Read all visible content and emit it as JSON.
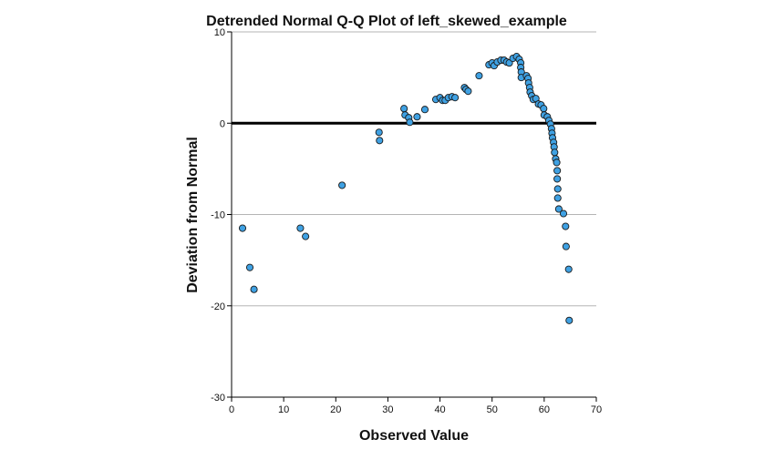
{
  "chart_data": {
    "type": "scatter",
    "title": "Detrended Normal Q-Q Plot of left_skewed_example",
    "xlabel": "Observed Value",
    "ylabel": "Deviation from Normal",
    "xlim": [
      0,
      70
    ],
    "ylim": [
      -30,
      10
    ],
    "xticks": [
      0,
      10,
      20,
      30,
      40,
      50,
      60,
      70
    ],
    "yticks": [
      -30,
      -20,
      -10,
      0,
      10
    ],
    "gridlines": "horizontal",
    "reference_line_y": 0,
    "colors": {
      "point_fill": "#3fa1e3",
      "point_stroke": "#1a1a1a",
      "gridline": "#b5b5b5",
      "reference_line": "#000000",
      "axis": "#000000"
    },
    "points": [
      [
        2.1,
        -11.5
      ],
      [
        3.5,
        -15.8
      ],
      [
        4.3,
        -18.2
      ],
      [
        13.2,
        -11.5
      ],
      [
        14.2,
        -12.4
      ],
      [
        21.2,
        -6.8
      ],
      [
        28.3,
        -1.0
      ],
      [
        28.4,
        -1.9
      ],
      [
        33.1,
        1.6
      ],
      [
        33.3,
        0.9
      ],
      [
        34.0,
        0.6
      ],
      [
        34.2,
        0.1
      ],
      [
        35.6,
        0.7
      ],
      [
        37.1,
        1.5
      ],
      [
        39.2,
        2.6
      ],
      [
        40.0,
        2.8
      ],
      [
        40.5,
        2.5
      ],
      [
        41.0,
        2.5
      ],
      [
        41.6,
        2.8
      ],
      [
        42.3,
        2.9
      ],
      [
        42.9,
        2.8
      ],
      [
        44.7,
        3.9
      ],
      [
        45.0,
        3.7
      ],
      [
        45.4,
        3.5
      ],
      [
        47.5,
        5.2
      ],
      [
        49.4,
        6.4
      ],
      [
        50.0,
        6.6
      ],
      [
        50.4,
        6.3
      ],
      [
        51.0,
        6.7
      ],
      [
        51.7,
        6.9
      ],
      [
        52.3,
        6.9
      ],
      [
        52.8,
        6.7
      ],
      [
        53.3,
        6.6
      ],
      [
        54.0,
        7.1
      ],
      [
        54.7,
        7.3
      ],
      [
        55.2,
        7.0
      ],
      [
        55.5,
        6.6
      ],
      [
        55.5,
        6.1
      ],
      [
        55.6,
        5.6
      ],
      [
        55.6,
        5.0
      ],
      [
        56.6,
        5.2
      ],
      [
        56.9,
        4.9
      ],
      [
        57.0,
        4.4
      ],
      [
        57.2,
        3.9
      ],
      [
        57.3,
        3.4
      ],
      [
        57.6,
        3.0
      ],
      [
        57.9,
        2.6
      ],
      [
        58.4,
        2.7
      ],
      [
        58.9,
        2.1
      ],
      [
        59.4,
        2.0
      ],
      [
        59.9,
        1.6
      ],
      [
        60.0,
        0.9
      ],
      [
        60.6,
        0.7
      ],
      [
        60.9,
        0.3
      ],
      [
        61.2,
        -0.1
      ],
      [
        61.4,
        -0.6
      ],
      [
        61.5,
        -1.1
      ],
      [
        61.6,
        -1.6
      ],
      [
        61.8,
        -2.1
      ],
      [
        61.9,
        -2.6
      ],
      [
        62.0,
        -3.2
      ],
      [
        62.2,
        -3.9
      ],
      [
        62.4,
        -4.3
      ],
      [
        62.5,
        -5.2
      ],
      [
        62.5,
        -6.1
      ],
      [
        62.6,
        -7.2
      ],
      [
        62.6,
        -8.2
      ],
      [
        62.8,
        -9.4
      ],
      [
        63.7,
        -9.9
      ],
      [
        64.1,
        -11.3
      ],
      [
        64.2,
        -13.5
      ],
      [
        64.7,
        -16.0
      ],
      [
        64.8,
        -21.6
      ]
    ]
  }
}
